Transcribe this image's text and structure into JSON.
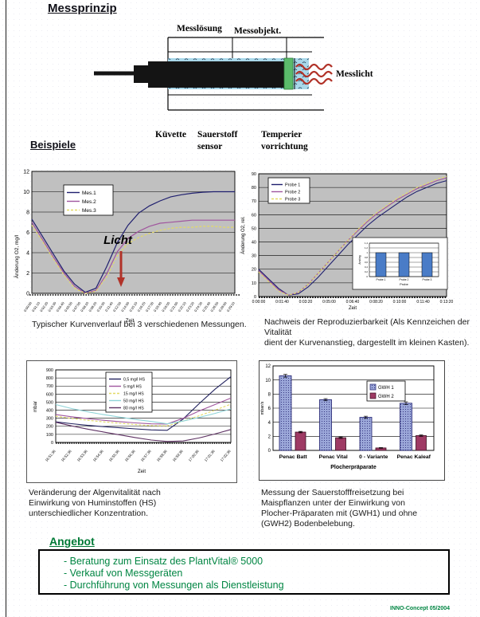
{
  "page": {
    "title": "Messprinzip",
    "beispiele_heading": "Beispiele",
    "angebot_heading": "Angebot",
    "footer": "INNO-Concept 05/2004",
    "accent_green": "#008542",
    "annotation_red": "#b13228"
  },
  "diagram": {
    "labels": {
      "messloesung": "Messlösung",
      "messobjekt": "Messobjekt.",
      "messlicht": "Messlicht",
      "kuevette": "Küvette",
      "sauerstoff_line1": "Sauerstoff",
      "sauerstoff_line2": "sensor",
      "temperier_line1": "Temperier",
      "temperier_line2": "vorrichtung"
    },
    "colors": {
      "solution_blue": "#a9d8ea",
      "sensor_green": "#5bbb6b",
      "probe_black": "#141414",
      "light_red": "#b13228"
    }
  },
  "offer": {
    "items": [
      "- Beratung zum Einsatz des PlantVital® 5000",
      "- Verkauf von Messgeräten",
      "- Durchführung von Messungen als Dienstleistung"
    ]
  },
  "chart_data": [
    {
      "type": "line",
      "name": "kurvenverlauf",
      "caption_lines": [
        "Typischer Kurvenverlauf bei 3 verschiedenen Messungen."
      ],
      "xlabel": "Zeit",
      "ylabel": "Änderung O2, mg/l",
      "ylim": [
        0,
        12
      ],
      "ytick": 2,
      "plot_bg": "#c0c0c0",
      "grid": true,
      "legend_position": "top-left-inside",
      "annotation": {
        "text": "Licht",
        "color": "#b13228"
      },
      "x_ticklabels": [
        "0:00:00",
        "0:01:10",
        "0:02:20",
        "0:03:30",
        "0:04:40",
        "0:05:50",
        "0:07:00",
        "0:08:10",
        "0:09:20",
        "0:10:30",
        "0:11:40",
        "0:12:50",
        "0:14:00",
        "0:15:10",
        "0:16:20",
        "0:17:30",
        "0:18:40",
        "0:19:50",
        "0:21:00",
        "0:22:10",
        "0:23:20",
        "0:24:30",
        "0:25:40",
        "0:26:50",
        "0:28:00",
        "0:29:10"
      ],
      "series": [
        {
          "name": "Mes.1",
          "color": "#1f1f6e",
          "dash": "",
          "values": [
            7.3,
            5.6,
            3.9,
            2.2,
            0.9,
            0.1,
            0.5,
            2.6,
            5.0,
            6.7,
            7.9,
            8.6,
            9.1,
            9.5,
            9.7,
            9.85,
            9.95,
            10.0,
            10.0,
            10.0
          ]
        },
        {
          "name": "Mes.2",
          "color": "#a0569e",
          "dash": "",
          "values": [
            7.0,
            5.3,
            3.6,
            2.0,
            0.7,
            0.0,
            0.3,
            1.9,
            4.1,
            5.4,
            6.1,
            6.6,
            6.9,
            7.0,
            7.1,
            7.2,
            7.2,
            7.2,
            7.2,
            7.2
          ]
        },
        {
          "name": "Mes.3",
          "color": "#e3da66",
          "dash": "3,2",
          "values": [
            6.7,
            5.1,
            3.4,
            1.8,
            0.5,
            0.0,
            0.2,
            1.6,
            3.7,
            4.9,
            5.5,
            5.9,
            6.2,
            6.4,
            6.5,
            6.5,
            6.6,
            6.6,
            6.5,
            6.5
          ]
        }
      ]
    },
    {
      "type": "line",
      "name": "reproduzierbarkeit",
      "caption_lines": [
        "Nachweis der Reproduzierbarkeit (Als Kennzeichen der Vitalität",
        "dient der Kurvenanstieg, dargestellt im kleinen Kasten)."
      ],
      "xlabel": "Zeit",
      "ylabel": "Änderung O2, rel.",
      "ylim": [
        0,
        90
      ],
      "ytick": 10,
      "plot_bg": "#c0c0c0",
      "grid": true,
      "legend_position": "top-left-inside",
      "x_ticklabels": [
        "0:00:00",
        "0:01:40",
        "0:03:20",
        "0:05:00",
        "0:06:40",
        "0:08:20",
        "0:10:00",
        "0:11:40",
        "0:13:20"
      ],
      "series": [
        {
          "name": "Probe 1",
          "color": "#1f1f6e",
          "dash": "",
          "values": [
            20,
            13,
            6,
            1,
            2,
            7,
            14,
            22,
            30,
            38,
            45,
            52,
            58,
            63,
            68,
            73,
            77,
            80,
            83,
            85
          ]
        },
        {
          "name": "Probe 2",
          "color": "#a0569e",
          "dash": "",
          "values": [
            19,
            12,
            5,
            1,
            3,
            9,
            17,
            25,
            33,
            41,
            48,
            55,
            61,
            66,
            71,
            75,
            79,
            82,
            85,
            87
          ]
        },
        {
          "name": "Probe 3",
          "color": "#e3da66",
          "dash": "3,2",
          "values": [
            18,
            11,
            4,
            1,
            3,
            9,
            17,
            25,
            33,
            41,
            49,
            56,
            62,
            67,
            72,
            76,
            80,
            83,
            86,
            88
          ]
        }
      ],
      "inset": {
        "type": "bar",
        "categories": [
          "Probe 1",
          "Probe 2",
          "Probe 3"
        ],
        "values": [
          1.0,
          1.0,
          1.0
        ],
        "ylim": [
          0,
          1.4
        ],
        "ytick": 0.2,
        "xlabel": "Probe",
        "ylabel": "Anstieg",
        "bar_color": "#4a7cc7"
      }
    },
    {
      "type": "line",
      "name": "algenvitalitaet",
      "caption_lines": [
        "Veränderung der Algenvitalität nach",
        "Einwirkung von Huminstoffen (HS)",
        "unterschiedlicher Konzentration."
      ],
      "xlabel": "Zeit",
      "ylabel": "mbar",
      "ylim": [
        0,
        900
      ],
      "ytick": 100,
      "plot_bg": "#ffffff",
      "grid": true,
      "legend_position": "top-center-inside",
      "x_ticklabels": [
        "16:51:36",
        "16:52:36",
        "16:53:36",
        "16:54:36",
        "16:55:36",
        "16:56:36",
        "16:57:36",
        "16:58:36",
        "16:59:36",
        "17:00:36",
        "17:01:36",
        "17:02:36"
      ],
      "series": [
        {
          "name": "0,5 mg/l HS",
          "color": "#23235f",
          "dash": "",
          "values": [
            255,
            232,
            212,
            196,
            182,
            168,
            155,
            150,
            290,
            480,
            660,
            815
          ]
        },
        {
          "name": "5 mg/l HS",
          "color": "#a0569e",
          "dash": "",
          "values": [
            345,
            318,
            295,
            275,
            258,
            242,
            230,
            228,
            300,
            390,
            470,
            550
          ]
        },
        {
          "name": "15 mg/l HS",
          "color": "#e3da66",
          "dash": "3,2",
          "values": [
            325,
            298,
            275,
            255,
            238,
            222,
            208,
            205,
            265,
            330,
            400,
            475
          ]
        },
        {
          "name": "50 mg/l HS",
          "color": "#8fd4d8",
          "dash": "",
          "values": [
            470,
            420,
            380,
            345,
            315,
            285,
            260,
            230,
            265,
            310,
            360,
            415
          ]
        },
        {
          "name": "80 mg/l HS",
          "color": "#5e3263",
          "dash": "",
          "values": [
            250,
            205,
            165,
            130,
            95,
            60,
            30,
            12,
            18,
            55,
            105,
            160
          ]
        }
      ]
    },
    {
      "type": "bar",
      "name": "sauerstofffreisetzung",
      "caption_lines": [
        "Messung der Sauerstofffreisetzung bei",
        "Maispflanzen unter der Einwirkung von",
        "Plocher-Präparaten mit (GWH1) und ohne",
        "(GWH2) Bodenbelebung."
      ],
      "xlabel": "Plocherpräparate",
      "ylabel": "mbar/s",
      "ylim": [
        0,
        12
      ],
      "ytick": 2,
      "plot_bg": "#ffffff",
      "grid": true,
      "categories": [
        "Penac Batt",
        "Penac Vital",
        "0 - Variante",
        "Penac Kaleaf"
      ],
      "series": [
        {
          "name": "GWH 1",
          "color": "#9ba7d9",
          "border": "#1f1f6e",
          "values": [
            10.6,
            7.2,
            4.7,
            6.7
          ],
          "errors": [
            0.2,
            0.15,
            0.15,
            0.2
          ]
        },
        {
          "name": "GWH 2",
          "color": "#9e3a64",
          "border": "#3a0f22",
          "values": [
            2.6,
            1.8,
            0.35,
            2.1
          ],
          "errors": [
            0.1,
            0.1,
            0.05,
            0.1
          ]
        }
      ]
    }
  ]
}
